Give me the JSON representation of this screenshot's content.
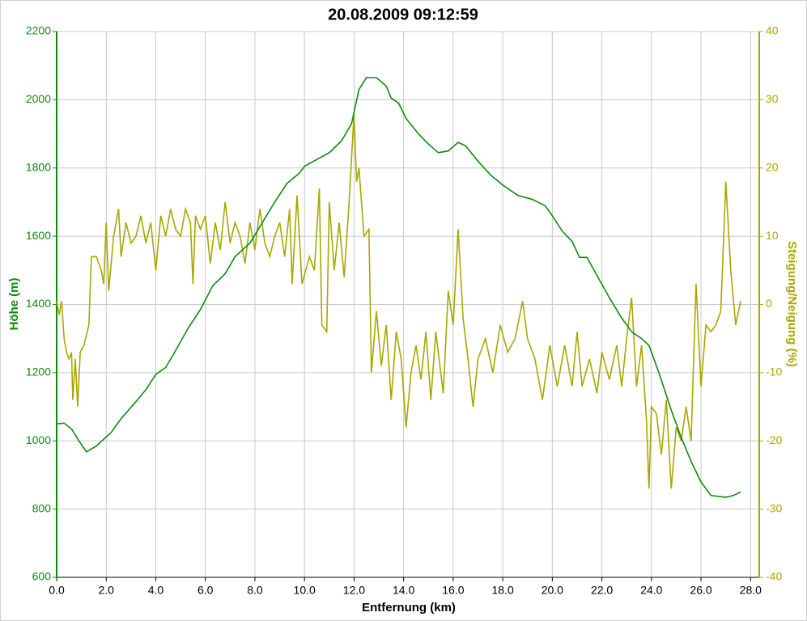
{
  "chart_data": {
    "type": "line",
    "title": "20.08.2009 09:12:59",
    "x_label": "Entfernung (km)",
    "y_label": "Höhe (m)",
    "y2_label": "Steigung/Neigung (%)",
    "xlim": [
      0,
      28.35
    ],
    "xticks": [
      {
        "value": 0,
        "label": "0.0"
      },
      {
        "value": 2,
        "label": "2.0"
      },
      {
        "value": 4,
        "label": "4.0"
      },
      {
        "value": 6,
        "label": "6.0"
      },
      {
        "value": 8,
        "label": "8.0"
      },
      {
        "value": 10,
        "label": "10.0"
      },
      {
        "value": 12,
        "label": "12.0"
      },
      {
        "value": 14,
        "label": "14.0"
      },
      {
        "value": 16,
        "label": "16.0"
      },
      {
        "value": 18,
        "label": "18.0"
      },
      {
        "value": 20,
        "label": "20.0"
      },
      {
        "value": 22,
        "label": "22.0"
      },
      {
        "value": 24,
        "label": "24.0"
      },
      {
        "value": 26,
        "label": "26.0"
      },
      {
        "value": 28,
        "label": "28.0"
      }
    ],
    "ylim": [
      600,
      2200
    ],
    "yticks": [
      600,
      800,
      1000,
      1200,
      1400,
      1600,
      1800,
      2000,
      2200
    ],
    "y2lim": [
      -40,
      40
    ],
    "y2ticks": [
      -40,
      -30,
      -20,
      -10,
      0,
      10,
      20,
      30,
      40
    ],
    "grid": true,
    "series": [
      {
        "color": "#108a10",
        "axis": "y",
        "x": [
          0,
          0.3,
          0.6,
          0.9,
          1.2,
          1.6,
          2.2,
          2.6,
          3.2,
          3.6,
          4.0,
          4.4,
          4.8,
          5.3,
          5.8,
          6.3,
          6.8,
          7.2,
          7.8,
          8.3,
          8.8,
          9.3,
          9.8,
          10.0,
          10.5,
          11.0,
          11.5,
          11.9,
          12.2,
          12.5,
          12.9,
          13.3,
          13.5,
          13.8,
          14.1,
          14.6,
          15.0,
          15.4,
          15.8,
          16.2,
          16.5,
          17.0,
          17.5,
          18.0,
          18.6,
          19.2,
          19.7,
          20.0,
          20.4,
          20.8,
          21.1,
          21.4,
          21.8,
          22.3,
          22.8,
          23.2,
          23.6,
          23.9,
          24.3,
          24.8,
          25.2,
          25.6,
          26.0,
          26.4,
          27.0,
          27.3,
          27.6
        ],
        "values": [
          1050,
          1052,
          1035,
          1000,
          968,
          985,
          1025,
          1065,
          1115,
          1150,
          1195,
          1215,
          1265,
          1330,
          1385,
          1455,
          1490,
          1540,
          1580,
          1640,
          1700,
          1755,
          1785,
          1805,
          1825,
          1845,
          1880,
          1930,
          2030,
          2065,
          2065,
          2040,
          2005,
          1990,
          1945,
          1900,
          1870,
          1845,
          1850,
          1875,
          1865,
          1820,
          1780,
          1750,
          1720,
          1708,
          1690,
          1660,
          1615,
          1585,
          1538,
          1538,
          1485,
          1420,
          1360,
          1320,
          1300,
          1280,
          1200,
          1090,
          1010,
          940,
          880,
          840,
          835,
          840,
          850
        ]
      },
      {
        "color": "#a8a800",
        "axis": "y2",
        "x": [
          0,
          0.1,
          0.2,
          0.3,
          0.4,
          0.5,
          0.6,
          0.65,
          0.75,
          0.85,
          0.95,
          1.1,
          1.3,
          1.4,
          1.6,
          1.8,
          1.9,
          2.0,
          2.1,
          2.3,
          2.5,
          2.6,
          2.8,
          3.0,
          3.2,
          3.4,
          3.6,
          3.8,
          4.0,
          4.2,
          4.4,
          4.6,
          4.8,
          5.0,
          5.2,
          5.4,
          5.5,
          5.6,
          5.8,
          6.0,
          6.2,
          6.4,
          6.6,
          6.8,
          7.0,
          7.2,
          7.4,
          7.6,
          7.8,
          8.0,
          8.2,
          8.4,
          8.6,
          8.8,
          9.0,
          9.2,
          9.4,
          9.5,
          9.7,
          9.9,
          10.2,
          10.4,
          10.6,
          10.7,
          10.9,
          11.0,
          11.2,
          11.4,
          11.6,
          11.8,
          12.0,
          12.1,
          12.2,
          12.4,
          12.6,
          12.7,
          12.9,
          13.1,
          13.3,
          13.5,
          13.7,
          13.9,
          14.1,
          14.3,
          14.5,
          14.7,
          14.9,
          15.1,
          15.3,
          15.6,
          15.8,
          16.0,
          16.2,
          16.4,
          16.6,
          16.8,
          17.0,
          17.3,
          17.6,
          17.9,
          18.2,
          18.5,
          18.8,
          19.0,
          19.3,
          19.6,
          19.9,
          20.2,
          20.5,
          20.8,
          21.0,
          21.2,
          21.5,
          21.8,
          22.0,
          22.3,
          22.6,
          22.8,
          23.0,
          23.2,
          23.4,
          23.6,
          23.8,
          23.9,
          24.0,
          24.2,
          24.4,
          24.6,
          24.8,
          25.0,
          25.2,
          25.4,
          25.6,
          25.8,
          26.0,
          26.2,
          26.4,
          26.6,
          26.8,
          27.0,
          27.2,
          27.4,
          27.6
        ],
        "values": [
          0.5,
          -1.5,
          0.5,
          -5,
          -7,
          -8,
          -7,
          -14,
          -8,
          -15,
          -7,
          -6,
          -3,
          7,
          7,
          5,
          3,
          12,
          2,
          10,
          14,
          7,
          12,
          9,
          10,
          13,
          9,
          12,
          5,
          13,
          10,
          14,
          11,
          10,
          14,
          12,
          3,
          13,
          11,
          13,
          6,
          12,
          8,
          15,
          9,
          12,
          10,
          6,
          12,
          8,
          14,
          9,
          7,
          10,
          12,
          7,
          14,
          3,
          16,
          3,
          7,
          5,
          17,
          -3,
          -4,
          15,
          5,
          12,
          4,
          15,
          28,
          18,
          20,
          10,
          11,
          -10,
          -1,
          -9,
          -3,
          -14,
          -4,
          -8,
          -18,
          -10,
          -6,
          -11,
          -4,
          -14,
          -4,
          -13,
          2,
          -3,
          11,
          -2,
          -8,
          -15,
          -8,
          -5,
          -10,
          -3,
          -7,
          -5,
          0.5,
          -5,
          -8,
          -14,
          -6,
          -12,
          -6,
          -12,
          -4,
          -12,
          -8,
          -13,
          -7,
          -11,
          -6,
          -12,
          -5,
          1,
          -12,
          -6,
          -17,
          -27,
          -15,
          -16,
          -22,
          -14,
          -27,
          -18,
          -20,
          -15,
          -20,
          3,
          -12,
          -3,
          -4,
          -3,
          -1,
          18,
          5,
          -3,
          0.5
        ]
      }
    ]
  }
}
